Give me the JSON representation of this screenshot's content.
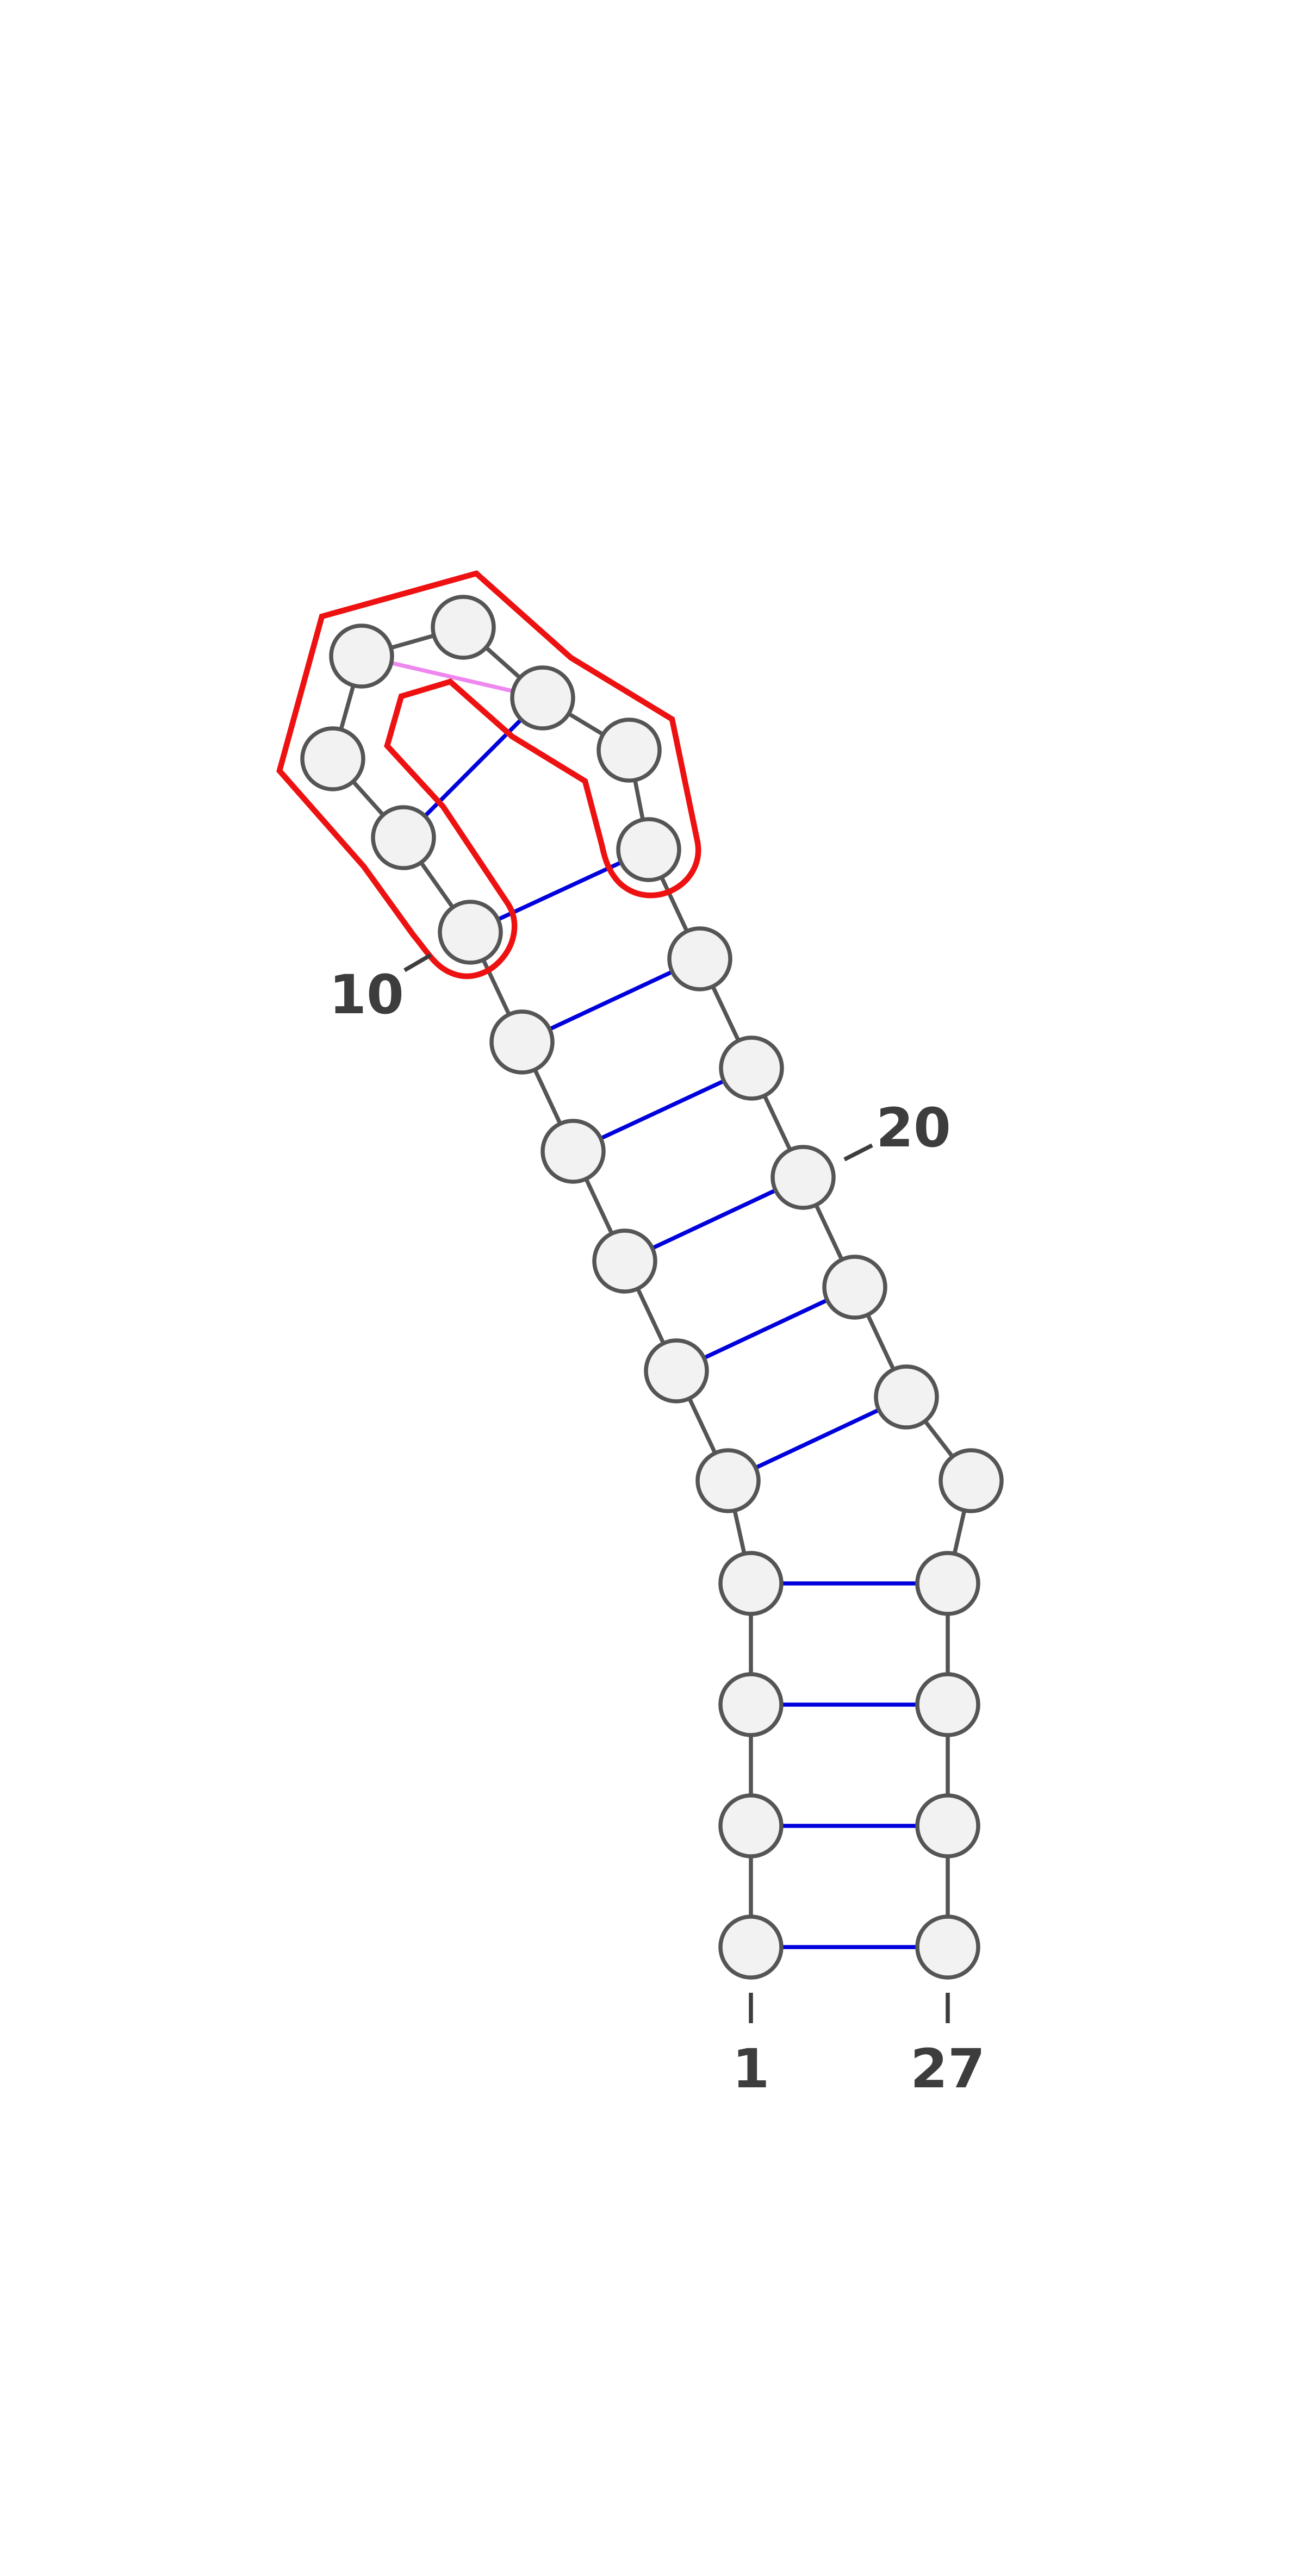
{
  "diagram": {
    "nucleotide_count": 27,
    "labels": [
      "10",
      "20",
      "1",
      "27"
    ],
    "colors": {
      "background": "#ffffff",
      "backbone": "#555555",
      "canonical_pair": "#0000dd",
      "noncanonical_pair": "#ee88ee",
      "highlight": "#ee1111",
      "node_fill": "#f2f2f2",
      "node_stroke": "#555555",
      "label": "#3d3d3d"
    },
    "base_pairs": [
      {
        "i": 1,
        "j": 27,
        "kind": "canonical"
      },
      {
        "i": 2,
        "j": 26,
        "kind": "canonical"
      },
      {
        "i": 3,
        "j": 25,
        "kind": "canonical"
      },
      {
        "i": 4,
        "j": 24,
        "kind": "canonical"
      },
      {
        "i": 5,
        "j": 22,
        "kind": "canonical"
      },
      {
        "i": 6,
        "j": 21,
        "kind": "canonical"
      },
      {
        "i": 7,
        "j": 20,
        "kind": "canonical"
      },
      {
        "i": 8,
        "j": 19,
        "kind": "canonical"
      },
      {
        "i": 9,
        "j": 18,
        "kind": "canonical"
      },
      {
        "i": 10,
        "j": 17,
        "kind": "canonical"
      },
      {
        "i": 11,
        "j": 15,
        "kind": "canonical"
      },
      {
        "i": 13,
        "j": 15,
        "kind": "noncanonical"
      }
    ]
  }
}
